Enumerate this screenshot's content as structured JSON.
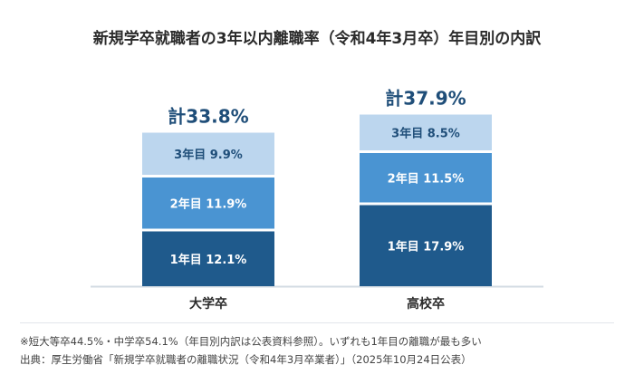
{
  "title": "新規学卒就職者の3年以内離職率（令和4年3月卒）年目別の内訳",
  "chart_data": {
    "type": "bar",
    "stacked": true,
    "categories": [
      "大学卒",
      "高校卒"
    ],
    "totals": [
      "計33.8%",
      "計37.9%"
    ],
    "series": [
      {
        "name": "1年目",
        "values": [
          12.1,
          17.9
        ],
        "labels": [
          "1年目 12.1%",
          "1年目 17.9%"
        ],
        "color": "#1f5a8c"
      },
      {
        "name": "2年目",
        "values": [
          11.9,
          11.5
        ],
        "labels": [
          "2年目 11.9%",
          "2年目 11.5%"
        ],
        "color": "#4a94d2"
      },
      {
        "name": "3年目",
        "values": [
          9.9,
          8.5
        ],
        "labels": [
          "3年目 9.9%",
          "3年目 8.5%"
        ],
        "color": "#bcd6ee"
      }
    ],
    "ylim": [
      0,
      40
    ],
    "grid": false
  },
  "notes": [
    "※短大等卒44.5%・中学卒54.1%（年目別内訳は公表資料参照）。いずれも1年目の離職が最も多い",
    "出典：厚生労働省「新規学卒就職者の離職状況（令和4年3月卒業者）」（2025年10月24日公表）"
  ]
}
